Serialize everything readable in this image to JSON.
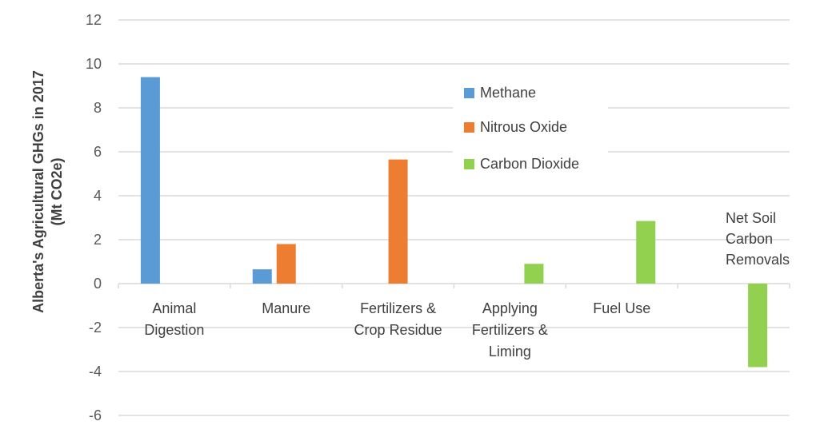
{
  "chart_data": {
    "type": "bar",
    "title": "",
    "xlabel": "",
    "ylabel": "Alberta's Agricultural GHGs in 2017 (Mt CO2e)",
    "ylabel_lines": [
      "Alberta's Agricultural GHGs in 2017",
      "(Mt CO2e)"
    ],
    "ylim": [
      -6,
      12
    ],
    "yticks": [
      12,
      10,
      8,
      6,
      4,
      2,
      0,
      -2,
      -4,
      -6
    ],
    "grid": true,
    "legend_position": "inside-top-center",
    "categories": [
      "Animal Digestion",
      "Manure",
      "Fertilizers & Crop Residue",
      "Applying Fertilizers & Liming",
      "Fuel Use",
      ""
    ],
    "category_label_lines": [
      [
        "Animal",
        "Digestion"
      ],
      [
        "Manure"
      ],
      [
        "Fertilizers &",
        "Crop Residue"
      ],
      [
        "Applying",
        "Fertilizers &",
        "Liming"
      ],
      [
        "Fuel Use"
      ],
      []
    ],
    "annotations": [
      {
        "text_lines": [
          "Net Soil",
          "Carbon",
          "Removals"
        ],
        "category_index": 5
      }
    ],
    "series": [
      {
        "name": "Methane",
        "color": "#5B9BD5",
        "values": [
          9.4,
          0.65,
          null,
          null,
          null,
          null
        ]
      },
      {
        "name": "Nitrous Oxide",
        "color": "#ED7D31",
        "values": [
          null,
          1.8,
          5.65,
          null,
          null,
          null
        ]
      },
      {
        "name": "Carbon Dioxide",
        "color": "#92D050",
        "values": [
          null,
          null,
          null,
          0.9,
          2.85,
          -3.8
        ]
      }
    ]
  },
  "legend": {
    "items": [
      {
        "label": "Methane",
        "color": "#5B9BD5"
      },
      {
        "label": "Nitrous Oxide",
        "color": "#ED7D31"
      },
      {
        "label": "Carbon Dioxide",
        "color": "#92D050"
      }
    ]
  }
}
